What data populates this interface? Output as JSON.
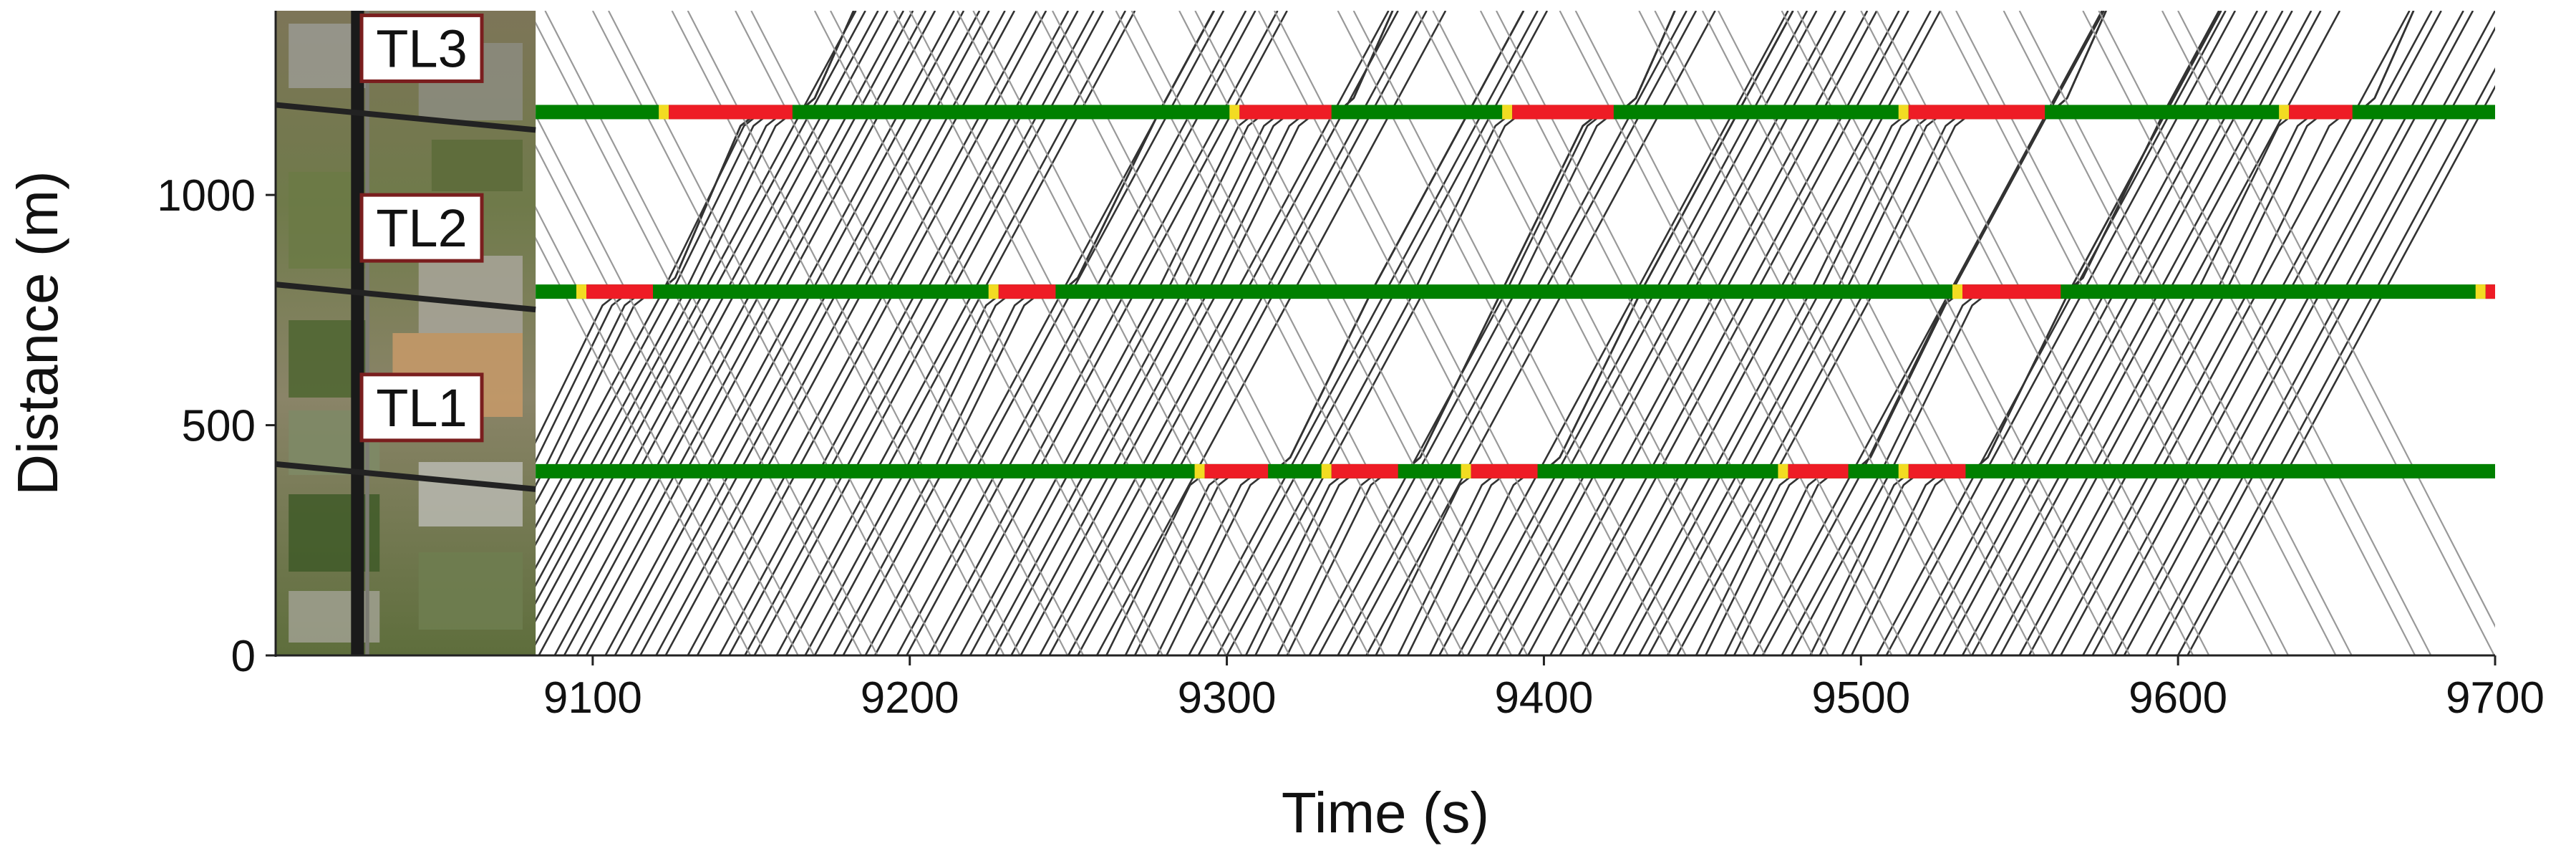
{
  "chart_data": {
    "type": "time-space-diagram",
    "xlabel": "Time (s)",
    "ylabel": "Distance (m)",
    "xlim": [
      9000,
      9700
    ],
    "ylim": [
      0,
      1400
    ],
    "xticks": [
      9100,
      9200,
      9300,
      9400,
      9500,
      9600,
      9700
    ],
    "yticks": [
      0,
      500,
      1000
    ],
    "signal_colors": {
      "green": "#008000",
      "yellow": "#f2dc22",
      "red": "#ee1c25"
    },
    "trajectory_colors": {
      "primary": "#333333",
      "secondary": "#999999"
    },
    "aerial_map": {
      "x_range": [
        9000,
        9082
      ]
    },
    "intersections": [
      {
        "label": "TL1",
        "position": 400,
        "red_phases": [
          [
            9293,
            9313
          ],
          [
            9333,
            9354
          ],
          [
            9377,
            9398
          ],
          [
            9477,
            9496
          ],
          [
            9515,
            9533
          ]
        ]
      },
      {
        "label": "TL2",
        "position": 790,
        "red_phases": [
          [
            9098,
            9119
          ],
          [
            9228,
            9246
          ],
          [
            9532,
            9563
          ],
          [
            9697,
            9700
          ]
        ]
      },
      {
        "label": "TL3",
        "position": 1180,
        "red_phases": [
          [
            9124,
            9163
          ],
          [
            9304,
            9333
          ],
          [
            9390,
            9422
          ],
          [
            9515,
            9558
          ],
          [
            9635,
            9655
          ]
        ]
      }
    ],
    "vehicle_platoons": {
      "northbound_departure_times": [
        9086,
        9093,
        9100,
        9107,
        9113,
        9120,
        9128,
        9135,
        9144,
        9152,
        9160,
        9170,
        9180,
        9188,
        9198,
        9207,
        9216,
        9226,
        9236,
        9246,
        9256,
        9264,
        9272,
        9281,
        9290,
        9299,
        9308,
        9318,
        9328,
        9337,
        9346,
        9356,
        9366,
        9375,
        9384,
        9394,
        9404,
        9413,
        9422,
        9432,
        9442,
        9452,
        9462,
        9470,
        9479,
        9488,
        9497,
        9506,
        9515,
        9524,
        9534,
        9545,
        9555,
        9563,
        9572,
        9581,
        9590,
        9600,
        9610,
        9620,
        9630,
        9640
      ],
      "southbound_entry_times": [
        9105,
        9120,
        9140,
        9160,
        9185,
        9205,
        9230,
        9255,
        9275,
        9300,
        9325,
        9345,
        9370,
        9395,
        9420,
        9440,
        9465,
        9490,
        9510,
        9535,
        9560,
        9585,
        9605,
        9630,
        9655
      ]
    }
  }
}
